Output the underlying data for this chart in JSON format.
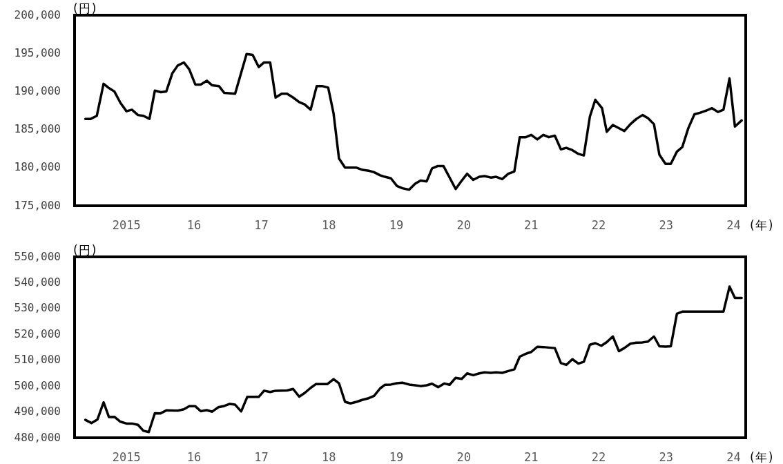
{
  "chart_data": [
    {
      "type": "line",
      "ylabel": "(円)",
      "xlabel": "(年)",
      "xlim": [
        2014.23,
        2024.18
      ],
      "ylim": [
        175000,
        200000
      ],
      "xticks": [
        2015,
        {
          "value": 2016,
          "label": "16"
        },
        {
          "value": 2017,
          "label": "17"
        },
        {
          "value": 2018,
          "label": "18"
        },
        {
          "value": 2019,
          "label": "19"
        },
        {
          "value": 2020,
          "label": "20"
        },
        {
          "value": 2021,
          "label": "21"
        },
        {
          "value": 2022,
          "label": "22"
        },
        {
          "value": 2023,
          "label": "23"
        },
        {
          "value": 2024,
          "label": "24"
        }
      ],
      "yticks": [
        {
          "value": 175000,
          "label": "175,000"
        },
        {
          "value": 180000,
          "label": "180,000"
        },
        {
          "value": 185000,
          "label": "185,000"
        },
        {
          "value": 190000,
          "label": "190,000"
        },
        {
          "value": 195000,
          "label": "195,000"
        },
        {
          "value": 200000,
          "label": "200,000"
        }
      ],
      "series": [
        {
          "color": "#000000",
          "x": [
            2014.39,
            2014.47,
            2014.56,
            2014.66,
            2014.73,
            2014.82,
            2014.91,
            2015.0,
            2015.08,
            2015.17,
            2015.25,
            2015.34,
            2015.42,
            2015.51,
            2015.59,
            2015.68,
            2015.76,
            2015.85,
            2015.93,
            2016.02,
            2016.1,
            2016.19,
            2016.27,
            2016.37,
            2016.45,
            2016.61,
            2016.78,
            2016.87,
            2016.96,
            2017.04,
            2017.13,
            2017.21,
            2017.3,
            2017.38,
            2017.47,
            2017.56,
            2017.64,
            2017.73,
            2017.82,
            2017.9,
            2017.99,
            2018.07,
            2018.15,
            2018.24,
            2018.41,
            2018.5,
            2018.59,
            2018.67,
            2018.76,
            2018.83,
            2018.92,
            2019.01,
            2019.09,
            2019.19,
            2019.28,
            2019.36,
            2019.45,
            2019.53,
            2019.61,
            2019.7,
            2019.88,
            2019.97,
            2020.05,
            2020.14,
            2020.23,
            2020.31,
            2020.4,
            2020.48,
            2020.57,
            2020.66,
            2020.75,
            2020.83,
            2020.92,
            2021.0,
            2021.09,
            2021.18,
            2021.26,
            2021.35,
            2021.44,
            2021.52,
            2021.61,
            2021.7,
            2021.78,
            2021.87,
            2021.95,
            2022.05,
            2022.12,
            2022.21,
            2022.38,
            2022.47,
            2022.56,
            2022.65,
            2022.73,
            2022.82,
            2022.9,
            2022.99,
            2023.07,
            2023.16,
            2023.24,
            2023.33,
            2023.42,
            2023.5,
            2023.6,
            2023.68,
            2023.77,
            2023.85,
            2023.94,
            2024.02,
            2024.12
          ],
          "values": [
            186400,
            186400,
            186800,
            191000,
            190500,
            190000,
            188500,
            187400,
            187600,
            186900,
            186800,
            186400,
            190100,
            189900,
            190000,
            192400,
            193400,
            193800,
            192900,
            190900,
            190900,
            191400,
            190800,
            190700,
            189800,
            189700,
            194900,
            194800,
            193200,
            193800,
            193800,
            189200,
            189700,
            189700,
            189200,
            188600,
            188300,
            187600,
            190700,
            190700,
            190500,
            187100,
            181200,
            180000,
            180000,
            179700,
            179600,
            179400,
            179000,
            178800,
            178600,
            177600,
            177300,
            177100,
            177900,
            178300,
            178200,
            179900,
            180200,
            180200,
            177200,
            178300,
            179200,
            178400,
            178800,
            178900,
            178700,
            178800,
            178500,
            179200,
            179500,
            184000,
            184000,
            184300,
            183700,
            184300,
            184000,
            184200,
            182400,
            182600,
            182300,
            181800,
            181600,
            186700,
            188900,
            187800,
            184700,
            185600,
            184800,
            185700,
            186400,
            186900,
            186500,
            185700,
            181700,
            180500,
            180500,
            182100,
            182700,
            185200,
            187000,
            187200,
            187500,
            187800,
            187300,
            187600,
            191700,
            185400,
            186200
          ]
        }
      ]
    },
    {
      "type": "line",
      "ylabel": "(円)",
      "xlabel": "(年)",
      "xlim": [
        2014.23,
        2024.18
      ],
      "ylim": [
        480000,
        550000
      ],
      "xticks": [
        2015,
        {
          "value": 2016,
          "label": "16"
        },
        {
          "value": 2017,
          "label": "17"
        },
        {
          "value": 2018,
          "label": "18"
        },
        {
          "value": 2019,
          "label": "19"
        },
        {
          "value": 2020,
          "label": "20"
        },
        {
          "value": 2021,
          "label": "21"
        },
        {
          "value": 2022,
          "label": "22"
        },
        {
          "value": 2023,
          "label": "23"
        },
        {
          "value": 2024,
          "label": "24"
        }
      ],
      "yticks": [
        {
          "value": 480000,
          "label": "480,000"
        },
        {
          "value": 490000,
          "label": "490,000"
        },
        {
          "value": 500000,
          "label": "500,000"
        },
        {
          "value": 510000,
          "label": "510,000"
        },
        {
          "value": 520000,
          "label": "520,000"
        },
        {
          "value": 530000,
          "label": "530,000"
        },
        {
          "value": 540000,
          "label": "540,000"
        },
        {
          "value": 550000,
          "label": "550,000"
        }
      ],
      "series": [
        {
          "color": "#000000",
          "x": [
            2014.39,
            2014.48,
            2014.57,
            2014.66,
            2014.74,
            2014.82,
            2014.91,
            2015.0,
            2015.08,
            2015.17,
            2015.25,
            2015.33,
            2015.42,
            2015.5,
            2015.59,
            2015.76,
            2015.85,
            2015.93,
            2016.02,
            2016.1,
            2016.19,
            2016.27,
            2016.36,
            2016.45,
            2016.53,
            2016.61,
            2016.7,
            2016.79,
            2016.96,
            2017.04,
            2017.13,
            2017.21,
            2017.38,
            2017.47,
            2017.56,
            2017.64,
            2017.73,
            2017.81,
            2017.98,
            2018.07,
            2018.15,
            2018.24,
            2018.32,
            2018.41,
            2018.5,
            2018.59,
            2018.67,
            2018.76,
            2018.83,
            2018.92,
            2019.01,
            2019.09,
            2019.19,
            2019.28,
            2019.36,
            2019.45,
            2019.53,
            2019.62,
            2019.71,
            2019.79,
            2019.88,
            2019.97,
            2020.05,
            2020.14,
            2020.23,
            2020.31,
            2020.4,
            2020.48,
            2020.57,
            2020.66,
            2020.75,
            2020.83,
            2020.92,
            2021.0,
            2021.09,
            2021.18,
            2021.26,
            2021.35,
            2021.44,
            2021.52,
            2021.61,
            2021.7,
            2021.78,
            2021.87,
            2021.95,
            2022.04,
            2022.12,
            2022.21,
            2022.3,
            2022.38,
            2022.47,
            2022.56,
            2022.65,
            2022.73,
            2022.82,
            2022.9,
            2022.99,
            2023.07,
            2023.16,
            2023.24,
            2023.85,
            2023.94,
            2024.02,
            2024.12
          ],
          "values": [
            486900,
            485700,
            487100,
            493700,
            488000,
            488100,
            486200,
            485500,
            485500,
            485000,
            482700,
            482200,
            489500,
            489400,
            490600,
            490500,
            491000,
            492200,
            492200,
            490300,
            490700,
            490100,
            491800,
            492300,
            493100,
            492800,
            490200,
            495800,
            495800,
            498200,
            497700,
            498200,
            498300,
            498900,
            495900,
            497300,
            499300,
            500800,
            500800,
            502700,
            501100,
            493900,
            493300,
            493900,
            494700,
            495300,
            496200,
            499100,
            500500,
            500600,
            501100,
            501300,
            500600,
            500300,
            500000,
            500300,
            500900,
            499600,
            501000,
            500500,
            503200,
            502800,
            504900,
            504200,
            504900,
            505300,
            505100,
            505300,
            505100,
            505800,
            506500,
            511400,
            512500,
            513200,
            515200,
            515100,
            514900,
            514700,
            508900,
            508200,
            510400,
            508700,
            509400,
            516000,
            516600,
            515600,
            517000,
            519200,
            513500,
            514700,
            516400,
            516800,
            516900,
            517200,
            519200,
            515400,
            515300,
            515400,
            528000,
            528800,
            528800,
            538500,
            534100,
            534100
          ]
        }
      ]
    }
  ]
}
